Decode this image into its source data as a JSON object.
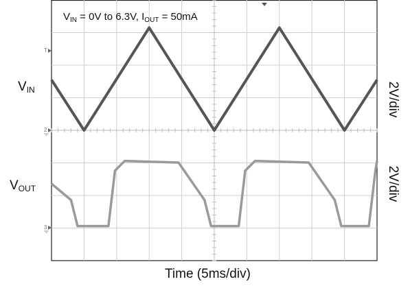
{
  "chart_data": {
    "type": "line",
    "title": "",
    "annotation": {
      "vin_sym": "V",
      "vin_sub": "IN",
      "vin_text": " = 0V to 6.3V, ",
      "iout_sym": "I",
      "iout_sub": "OUT",
      "iout_text": " = 50mA"
    },
    "xlabel": "Time (5ms/div)",
    "x_units": "divisions",
    "xlim": [
      0,
      10
    ],
    "grid": true,
    "series": [
      {
        "name": "VIN",
        "label_sym": "V",
        "label_sub": "IN",
        "scale": "2V/div",
        "color": "#555555",
        "x": [
          0,
          1,
          3,
          5,
          7,
          9,
          10
        ],
        "y": [
          3.1,
          0,
          6.3,
          0,
          6.3,
          0,
          3.1
        ]
      },
      {
        "name": "VOUT",
        "label_sym": "V",
        "label_sub": "OUT",
        "scale": "2V/div",
        "color": "#9a9a9a",
        "x": [
          0,
          0.6,
          0.8,
          1.75,
          1.95,
          2.25,
          3.9,
          4.7,
          4.9,
          5.75,
          5.95,
          6.25,
          7.9,
          8.7,
          8.9,
          9.75,
          9.95,
          10
        ],
        "y": [
          2.7,
          1.7,
          0.1,
          0.1,
          3.5,
          4.1,
          4.0,
          1.7,
          0.1,
          0.1,
          3.5,
          4.1,
          4.0,
          1.7,
          0.1,
          0.1,
          3.5,
          4.1
        ]
      }
    ],
    "markers": {
      "trigger": "T",
      "ch2": "2",
      "ch3": "3"
    }
  }
}
